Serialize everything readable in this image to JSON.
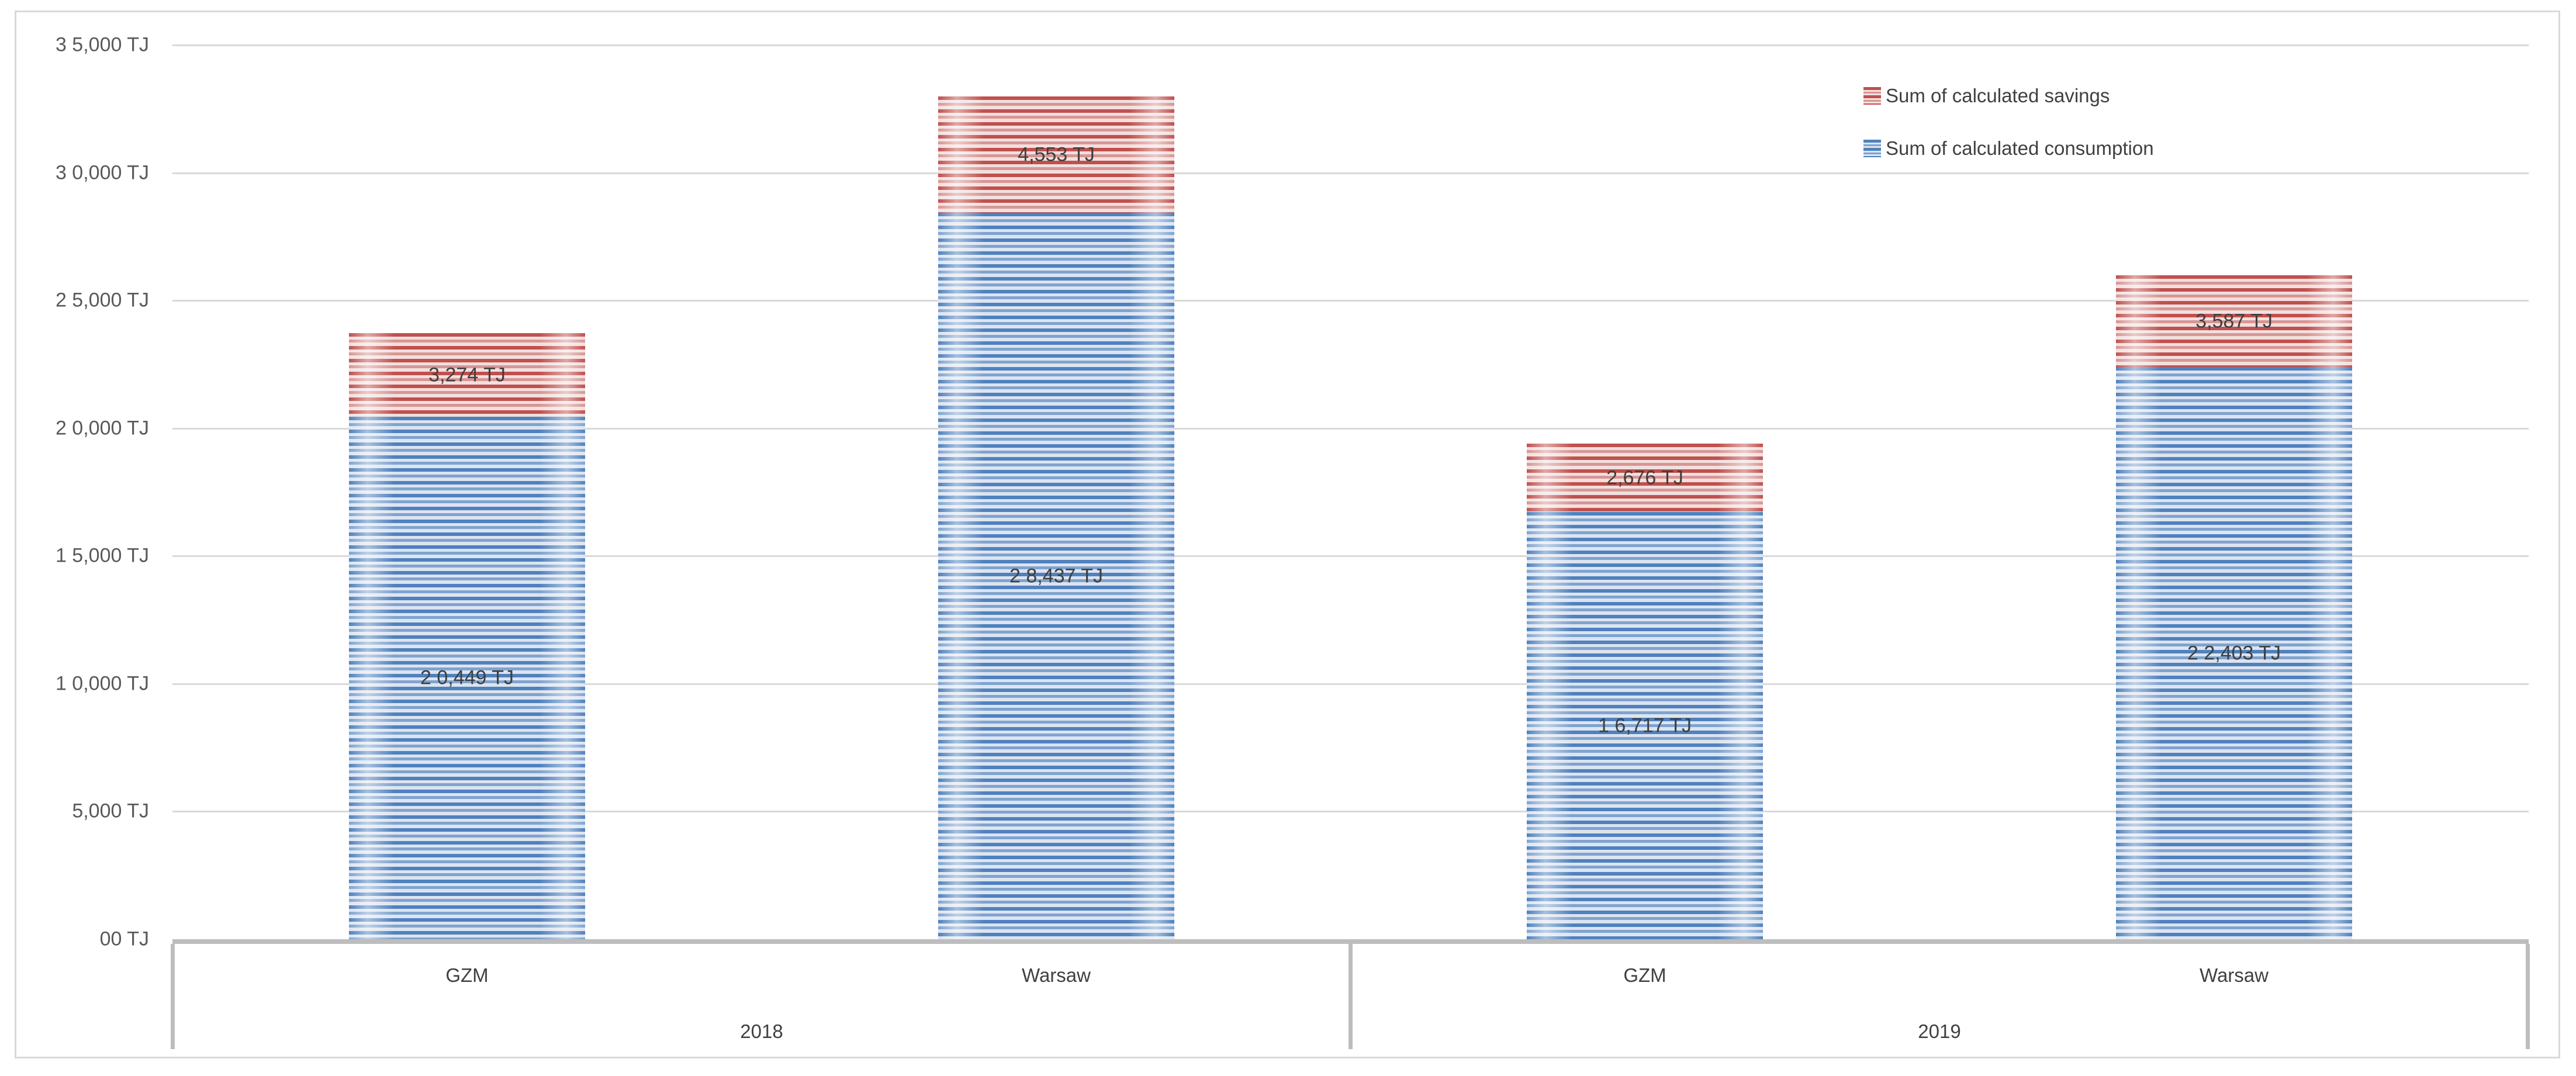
{
  "chart_data": {
    "type": "bar",
    "stacked": true,
    "unit": "TJ",
    "grid": true,
    "groups": [
      {
        "year": "2018",
        "categories": [
          "GZM",
          "Warsaw"
        ]
      },
      {
        "year": "2019",
        "categories": [
          "GZM",
          "Warsaw"
        ]
      }
    ],
    "categories": [
      "GZM 2018",
      "Warsaw 2018",
      "GZM 2019",
      "Warsaw 2019"
    ],
    "series": [
      {
        "name": "Sum of calculated consumption",
        "values": [
          20449,
          28437,
          16717,
          22403
        ],
        "data_labels": [
          "2 0,449 TJ",
          "2 8,437 TJ",
          "1 6,717 TJ",
          "2 2,403 TJ"
        ],
        "stripe_dark": "#4F81BD",
        "stripe_mid": "#7FA3CE",
        "stripe_light": "#DCE4F1"
      },
      {
        "name": "Sum of calculated savings",
        "values": [
          3274,
          4553,
          2676,
          3587
        ],
        "data_labels": [
          "3,274 TJ",
          "4,553 TJ",
          "2,676 TJ",
          "3,587 TJ"
        ],
        "stripe_dark": "#C0504D",
        "stripe_mid": "#D69694",
        "stripe_light": "#F2DFDE"
      }
    ],
    "y_axis": {
      "min": 0,
      "max": 35000,
      "tick_interval": 5000,
      "tick_labels": [
        "00 TJ",
        "5,000 TJ",
        "1 0,000 TJ",
        "1 5,000 TJ",
        "2 0,000 TJ",
        "2 5,000 TJ",
        "3 0,000 TJ",
        "3 5,000 TJ"
      ]
    },
    "legend": {
      "position": "top-right",
      "entries": [
        "Sum of calculated savings",
        "Sum of calculated consumption"
      ]
    },
    "colors": {
      "gridline": "#D9D9D9",
      "axis_band": "#BDBDBD",
      "axis_text": "#595959",
      "label_text": "#3F3F3F",
      "border": "#D9D9D9"
    }
  }
}
